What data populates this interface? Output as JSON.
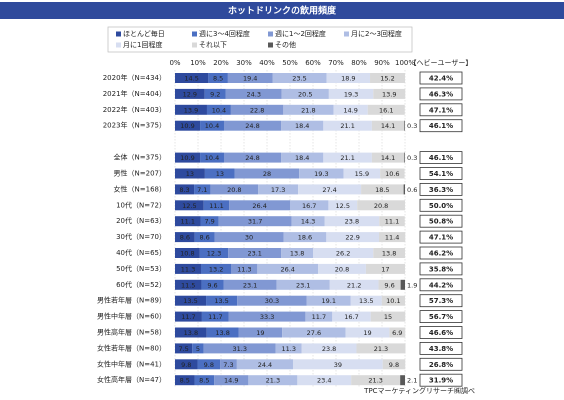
{
  "chart_data": {
    "type": "stacked-bar-horizontal",
    "title": "ホットドリンクの飲用頻度",
    "categories": [
      "2020年（N=434）",
      "2021年（N=404）",
      "2022年（N=403）",
      "2023年（N=375）",
      "全体（N=375）",
      "男性（N=207）",
      "女性（N=168）",
      "10代（N=72）",
      "20代（N=63）",
      "30代（N=70）",
      "40代（N=65）",
      "50代（N=53）",
      "60代（N=52）",
      "男性若年層（N=89）",
      "男性中年層（N=60）",
      "男性高年層（N=58）",
      "女性若年層（N=80）",
      "女性中年層（N=41）",
      "女性高年層（N=47）"
    ],
    "series": [
      {
        "name": "ほとんど毎日",
        "color": "#2e4a9e",
        "values": [
          14.5,
          12.9,
          13.9,
          10.9,
          10.9,
          13.0,
          8.3,
          12.5,
          11.1,
          8.6,
          10.8,
          11.3,
          11.5,
          13.5,
          11.7,
          13.8,
          7.5,
          9.8,
          8.5
        ]
      },
      {
        "name": "週に3～4回程度",
        "color": "#4b6fc2",
        "values": [
          8.5,
          9.2,
          10.4,
          10.4,
          10.4,
          13.0,
          7.1,
          11.1,
          7.9,
          8.6,
          12.3,
          13.2,
          9.6,
          13.5,
          11.7,
          13.8,
          5.0,
          9.8,
          8.5
        ]
      },
      {
        "name": "週に1～2回程度",
        "color": "#8198d3",
        "values": [
          19.4,
          24.3,
          22.8,
          24.8,
          24.8,
          28.0,
          20.8,
          26.4,
          31.7,
          30.0,
          23.1,
          11.3,
          23.1,
          30.3,
          33.3,
          19.0,
          31.3,
          7.3,
          14.9
        ]
      },
      {
        "name": "月に2～3回程度",
        "color": "#afbee4",
        "values": [
          23.5,
          20.5,
          21.8,
          18.4,
          18.4,
          19.3,
          17.3,
          16.7,
          14.3,
          18.6,
          13.8,
          26.4,
          23.1,
          19.1,
          11.7,
          27.6,
          11.3,
          24.4,
          21.3
        ]
      },
      {
        "name": "月に1回程度",
        "color": "#d7def1",
        "values": [
          18.9,
          19.3,
          14.9,
          21.1,
          21.1,
          15.9,
          27.4,
          12.5,
          23.8,
          22.9,
          26.2,
          20.8,
          21.2,
          13.5,
          16.7,
          19.0,
          23.8,
          39.0,
          23.4
        ]
      },
      {
        "name": "それ以下",
        "color": "#d9d9d9",
        "values": [
          15.2,
          13.9,
          16.1,
          14.1,
          14.1,
          10.6,
          18.5,
          20.8,
          11.1,
          11.4,
          13.8,
          17.0,
          9.6,
          10.1,
          15.0,
          6.9,
          21.3,
          9.8,
          21.3
        ]
      },
      {
        "name": "その他",
        "color": "#595959",
        "values": [
          0,
          0,
          0,
          0.3,
          0.3,
          0,
          0.6,
          0,
          0,
          0,
          0,
          0,
          1.9,
          0,
          0,
          0,
          0,
          0,
          2.1
        ]
      }
    ],
    "xlim": [
      0,
      100
    ],
    "xticks": [
      {
        "value": 0,
        "label": "0%"
      },
      {
        "value": 10,
        "label": "10%"
      },
      {
        "value": 20,
        "label": "20%"
      },
      {
        "value": 30,
        "label": "30%"
      },
      {
        "value": 40,
        "label": "40%"
      },
      {
        "value": 50,
        "label": "50%"
      },
      {
        "value": 60,
        "label": "60%"
      },
      {
        "value": 70,
        "label": "70%"
      },
      {
        "value": 80,
        "label": "80%"
      },
      {
        "value": 90,
        "label": "90%"
      },
      {
        "value": 100,
        "label": "100%"
      }
    ],
    "grid": true,
    "heavy_users": {
      "title": "【ヘビーユーザー】",
      "values": [
        42.4,
        46.3,
        47.1,
        46.1,
        46.1,
        54.1,
        36.3,
        50.0,
        50.8,
        47.1,
        46.2,
        35.8,
        44.2,
        57.3,
        56.7,
        46.6,
        43.8,
        26.8,
        31.9
      ],
      "value_labels": [
        "42.4%",
        "46.3%",
        "47.1%",
        "46.1%",
        "46.1%",
        "54.1%",
        "36.3%",
        "50.0%",
        "50.8%",
        "47.1%",
        "46.2%",
        "35.8%",
        "44.2%",
        "57.3%",
        "56.7%",
        "46.6%",
        "43.8%",
        "26.8%",
        "31.9%"
      ]
    },
    "source": "TPCマーケティングリサーチ㈱調べ"
  }
}
